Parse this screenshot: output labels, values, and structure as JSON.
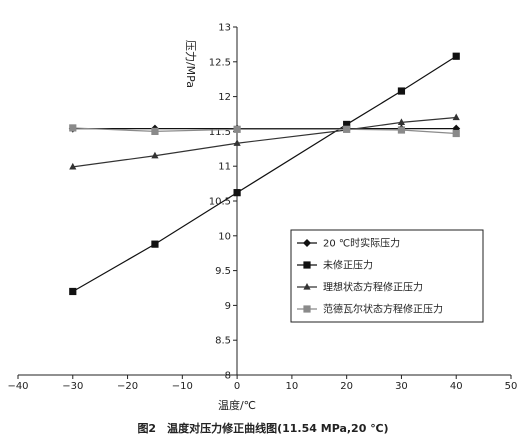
{
  "chart_data": {
    "type": "line",
    "caption": "图2　温度对压力修正曲线图(11.54 MPa,20 ℃)",
    "xlabel": "温度/℃",
    "ylabel": "压力/MPa",
    "xlim": [
      -40,
      50
    ],
    "ylim": [
      8,
      13
    ],
    "x_ticks": [
      -40,
      -30,
      -20,
      -10,
      0,
      10,
      20,
      30,
      40,
      50
    ],
    "x_tick_labels": [
      "−40",
      "−30",
      "−20",
      "−10",
      "0",
      "10",
      "20",
      "30",
      "40",
      "50"
    ],
    "y_ticks": [
      8,
      8.5,
      9,
      9.5,
      10,
      10.5,
      11,
      11.5,
      12,
      12.5,
      13
    ],
    "y_tick_labels": [
      "8",
      "8.5",
      "9",
      "9.5",
      "10",
      "10.5",
      "11",
      "11.5",
      "12",
      "12.5",
      "13"
    ],
    "legend_position": "lower-right",
    "series": [
      {
        "name": "20 ℃时实际压力",
        "marker": "diamond",
        "color": "#111111",
        "x": [
          -30,
          -15,
          0,
          20,
          30,
          40
        ],
        "y": [
          11.54,
          11.54,
          11.54,
          11.54,
          11.54,
          11.54
        ]
      },
      {
        "name": "未修正压力",
        "marker": "square",
        "color": "#111111",
        "x": [
          -30,
          -15,
          0,
          20,
          30,
          40
        ],
        "y": [
          9.2,
          9.88,
          10.62,
          11.6,
          12.08,
          12.58
        ]
      },
      {
        "name": "理想状态方程修正压力",
        "marker": "triangle",
        "color": "#333333",
        "x": [
          -30,
          -15,
          0,
          20,
          30,
          40
        ],
        "y": [
          10.99,
          11.15,
          11.33,
          11.52,
          11.63,
          11.7
        ]
      },
      {
        "name": "范德瓦尔状态方程修正压力",
        "marker": "square",
        "color": "#8a8a8a",
        "x": [
          -30,
          -15,
          0,
          20,
          30,
          40
        ],
        "y": [
          11.55,
          11.5,
          11.53,
          11.53,
          11.52,
          11.47
        ]
      }
    ]
  }
}
